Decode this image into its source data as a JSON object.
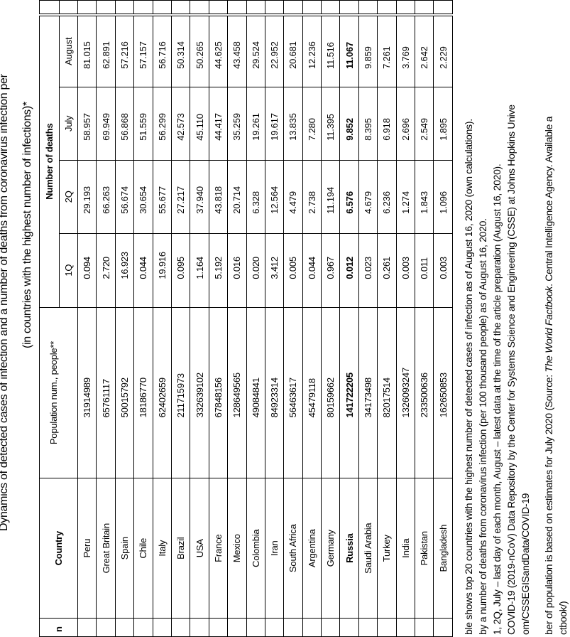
{
  "title": {
    "line1": "Dynamics of detected cases of infection and a number of deaths from coronavirus infection per",
    "line2": "(in countries with the highest number of infections)*"
  },
  "table": {
    "headers": {
      "cut_left": "n",
      "country": "Country",
      "population": "Population num., people**",
      "deaths_group": "Number of deaths",
      "q1": "1Q",
      "q2": "2Q",
      "july": "July",
      "august": "August"
    },
    "rows": [
      {
        "country": "Peru",
        "population": "31914989",
        "q1": "0.094",
        "q2": "29.193",
        "july": "58.957",
        "august": "81.015"
      },
      {
        "country": "Great Britain",
        "population": "65761117",
        "q1": "2.720",
        "q2": "66.263",
        "july": "69.949",
        "august": "62.891"
      },
      {
        "country": "Spain",
        "population": "50015792",
        "q1": "16.923",
        "q2": "56.674",
        "july": "56.868",
        "august": "57.216"
      },
      {
        "country": "Chile",
        "population": "18186770",
        "q1": "0.044",
        "q2": "30.654",
        "july": "51.559",
        "august": "57.157"
      },
      {
        "country": "Italy",
        "population": "62402659",
        "q1": "19.916",
        "q2": "55.677",
        "july": "56.299",
        "august": "56.716"
      },
      {
        "country": "Brazil",
        "population": "211715973",
        "q1": "0.095",
        "q2": "27.217",
        "july": "42.573",
        "august": "50.314"
      },
      {
        "country": "USA",
        "population": "332639102",
        "q1": "1.164",
        "q2": "37.940",
        "july": "45.110",
        "august": "50.265"
      },
      {
        "country": "France",
        "population": "67848156",
        "q1": "5.192",
        "q2": "43.818",
        "july": "44.417",
        "august": "44.625"
      },
      {
        "country": "Mexico",
        "population": "128649565",
        "q1": "0.016",
        "q2": "20.714",
        "july": "35.259",
        "august": "43.458"
      },
      {
        "country": "Colombia",
        "population": "49084841",
        "q1": "0.020",
        "q2": "6.328",
        "july": "19.261",
        "august": "29.524"
      },
      {
        "country": "Iran",
        "population": "84923314",
        "q1": "3.412",
        "q2": "12.564",
        "july": "19.617",
        "august": "22.952"
      },
      {
        "country": "South Africa",
        "population": "56463617",
        "q1": "0.005",
        "q2": "4.479",
        "july": "13.835",
        "august": "20.681"
      },
      {
        "country": "Argentina",
        "population": "45479118",
        "q1": "0.044",
        "q2": "2.738",
        "july": "7.280",
        "august": "12.236"
      },
      {
        "country": "Germany",
        "population": "80159662",
        "q1": "0.967",
        "q2": "11.194",
        "july": "11.395",
        "august": "11.516"
      },
      {
        "country": "Russia",
        "population": "141722205",
        "q1": "0.012",
        "q2": "6.576",
        "july": "9.852",
        "august": "11.067",
        "bold": true
      },
      {
        "country": "Saudi Arabia",
        "population": "34173498",
        "q1": "0.023",
        "q2": "4.679",
        "july": "8.395",
        "august": "9.859"
      },
      {
        "country": "Turkey",
        "population": "82017514",
        "q1": "0.261",
        "q2": "6.236",
        "july": "6.918",
        "august": "7.261"
      },
      {
        "country": "India",
        "population": "1326093247",
        "q1": "0.003",
        "q2": "1.274",
        "july": "2.696",
        "august": "3.769"
      },
      {
        "country": "Pakistan",
        "population": "233500636",
        "q1": "0.011",
        "q2": "1.843",
        "july": "2.549",
        "august": "2.642"
      },
      {
        "country": "Bangladesh",
        "population": "162650853",
        "q1": "0.003",
        "q2": "1.096",
        "july": "1.895",
        "august": "2.229"
      }
    ]
  },
  "footnotes": {
    "line1": "ble shows top 20 countries with the highest number of detected cases of infection as of August 16, 2020 (own calculations).",
    "line2": "by a number of deaths from coronavirus infection (per 100 thousand people) as of August 16, 2020.",
    "line3": "1, 2Q, July – last day of each month, August – latest data at the time of the article preparation (August 16, 2020).",
    "line4": "COVID-19 (2019-nCoV) Data Repository by the Center for Systems Science and Engineering (CSSE) at Johns Hopkins Unive",
    "line5": "om/CSSEGISandData/COVID-19",
    "line6_a": "ber of population is based on estimates for July 2020 (Source: ",
    "line6_italic": "The World Factbook",
    "line6_b": ". Central Intelligence Agency. Available a",
    "line7": "ctbook/)"
  }
}
